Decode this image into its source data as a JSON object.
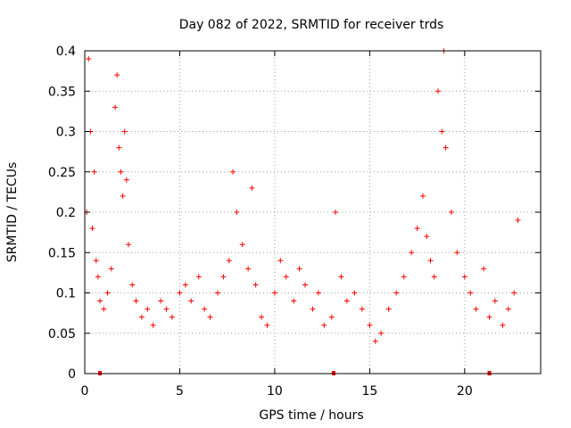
{
  "chart_data": {
    "type": "scatter",
    "title": "Day 082 of 2022, SRMTID for receiver trds",
    "xlabel": "GPS time / hours",
    "ylabel": "SRMTID / TECUs",
    "xlim": [
      0,
      24
    ],
    "ylim": [
      0,
      0.4
    ],
    "x_ticks": [
      0,
      5,
      10,
      15,
      20
    ],
    "x_tick_labels": [
      "0",
      "5",
      "10",
      "15",
      "20"
    ],
    "y_ticks": [
      0,
      0.05,
      0.1,
      0.15,
      0.2,
      0.25,
      0.3,
      0.35,
      0.4
    ],
    "y_tick_labels": [
      "0",
      "0.05",
      "0.1",
      "0.15",
      "0.2",
      "0.25",
      "0.3",
      "0.35",
      "0.4"
    ],
    "grid": true,
    "marker": "+",
    "color": "#ff0000",
    "series": [
      {
        "name": "SRMTID",
        "x": [
          0.1,
          0.2,
          0.3,
          0.4,
          0.5,
          0.6,
          0.7,
          0.8,
          1.0,
          1.2,
          1.4,
          1.6,
          1.7,
          1.8,
          1.9,
          2.0,
          2.1,
          2.2,
          2.3,
          2.5,
          2.7,
          3.0,
          3.3,
          3.6,
          4.0,
          4.3,
          4.6,
          5.0,
          5.3,
          5.6,
          6.0,
          6.3,
          6.6,
          7.0,
          7.3,
          7.6,
          7.8,
          8.0,
          8.3,
          8.6,
          8.8,
          9.0,
          9.3,
          9.6,
          10.0,
          10.3,
          10.6,
          11.0,
          11.3,
          11.6,
          12.0,
          12.3,
          12.6,
          13.0,
          13.2,
          13.5,
          13.8,
          14.2,
          14.6,
          15.0,
          15.3,
          15.6,
          16.0,
          16.4,
          16.8,
          17.2,
          17.5,
          17.8,
          18.0,
          18.2,
          18.4,
          18.6,
          18.8,
          18.9,
          19.0,
          19.3,
          19.6,
          20.0,
          20.3,
          20.6,
          21.0,
          21.3,
          21.6,
          22.0,
          22.3,
          22.6,
          22.8
        ],
        "y": [
          0.2,
          0.39,
          0.3,
          0.18,
          0.25,
          0.14,
          0.12,
          0.09,
          0.08,
          0.1,
          0.13,
          0.33,
          0.37,
          0.28,
          0.25,
          0.22,
          0.3,
          0.24,
          0.16,
          0.11,
          0.09,
          0.07,
          0.08,
          0.06,
          0.09,
          0.08,
          0.07,
          0.1,
          0.11,
          0.09,
          0.12,
          0.08,
          0.07,
          0.1,
          0.12,
          0.14,
          0.25,
          0.2,
          0.16,
          0.13,
          0.23,
          0.11,
          0.07,
          0.06,
          0.1,
          0.14,
          0.12,
          0.09,
          0.13,
          0.11,
          0.08,
          0.1,
          0.06,
          0.07,
          0.2,
          0.12,
          0.09,
          0.1,
          0.08,
          0.06,
          0.04,
          0.05,
          0.08,
          0.1,
          0.12,
          0.15,
          0.18,
          0.22,
          0.17,
          0.14,
          0.12,
          0.35,
          0.3,
          0.4,
          0.28,
          0.2,
          0.15,
          0.12,
          0.1,
          0.08,
          0.13,
          0.07,
          0.09,
          0.06,
          0.08,
          0.1,
          0.19
        ]
      }
    ],
    "markers_on_axis": [
      0.8,
      13.1,
      21.3
    ]
  }
}
